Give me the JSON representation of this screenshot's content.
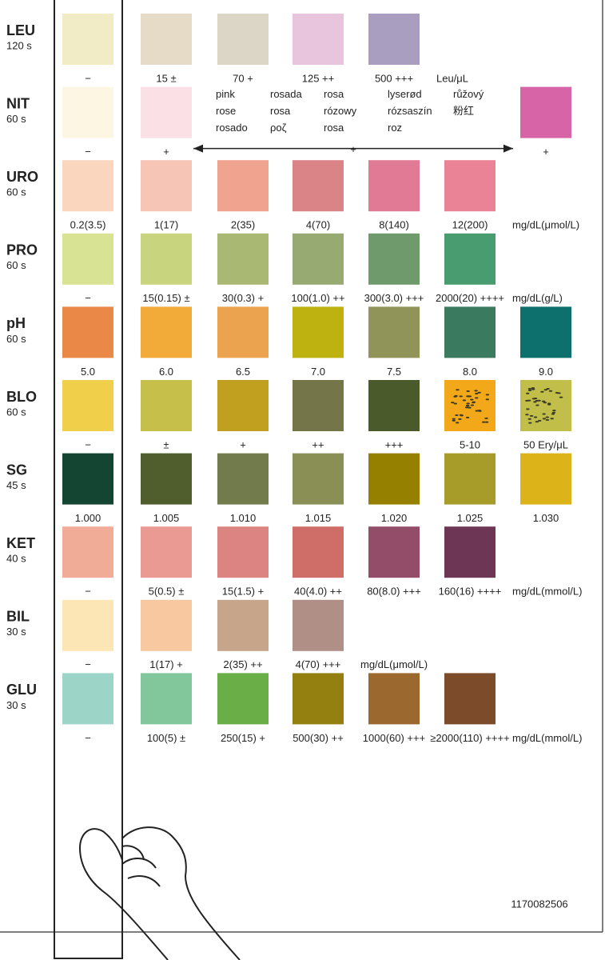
{
  "rows": [
    {
      "code": "LEU",
      "time": "120 s",
      "swatches": [
        {
          "color": "#f2ecc6",
          "label": "−"
        },
        {
          "color": "#e6dbc6",
          "label": "15 ±"
        },
        {
          "color": "#dcd6c6",
          "label": "70 +"
        },
        {
          "color": "#e8c5dc",
          "label": "125 ++"
        },
        {
          "color": "#a99ec0",
          "label": "500 +++"
        }
      ],
      "unit": "Leu/μL"
    },
    {
      "code": "NIT",
      "time": "60 s",
      "swatches": [
        {
          "color": "#fdf6e3",
          "label": "−"
        },
        {
          "color": "#fbe0e6",
          "label": "+"
        }
      ],
      "translations": [
        [
          "pink",
          "rose",
          "rosado"
        ],
        [
          "rosada",
          "rosa",
          "ροζ"
        ],
        [
          "rosa",
          "rózowy",
          "rosa"
        ],
        [
          "lyserød",
          "rózsaszín",
          "roz"
        ],
        [
          "růžový",
          "粉红"
        ]
      ],
      "arrow_label": "+",
      "end_swatch": {
        "color": "#d764a6",
        "label": "+"
      }
    },
    {
      "code": "URO",
      "time": "60 s",
      "swatches": [
        {
          "color": "#fbd6be",
          "label": "0.2(3.5)"
        },
        {
          "color": "#f7c5b5",
          "label": "1(17)"
        },
        {
          "color": "#f0a490",
          "label": "2(35)"
        },
        {
          "color": "#da8488",
          "label": "4(70)"
        },
        {
          "color": "#e07a95",
          "label": "8(140)"
        },
        {
          "color": "#ea8395",
          "label": "12(200)"
        }
      ],
      "unit": "mg/dL(μmol/L)"
    },
    {
      "code": "PRO",
      "time": "60 s",
      "swatches": [
        {
          "color": "#d8e494",
          "label": "−"
        },
        {
          "color": "#c8d47e",
          "label": "15(0.15) ±"
        },
        {
          "color": "#a9b872",
          "label": "30(0.3) +"
        },
        {
          "color": "#96aa72",
          "label": "100(1.0) ++"
        },
        {
          "color": "#6f9a6c",
          "label": "300(3.0) +++"
        },
        {
          "color": "#489c6f",
          "label": "2000(20) ++++"
        }
      ],
      "unit": "mg/dL(g/L)"
    },
    {
      "code": "pH",
      "time": "60 s",
      "swatches": [
        {
          "color": "#ea8848",
          "label": "5.0"
        },
        {
          "color": "#f2ab39",
          "label": "6.0"
        },
        {
          "color": "#eca34f",
          "label": "6.5"
        },
        {
          "color": "#bdb20f",
          "label": "7.0"
        },
        {
          "color": "#919458",
          "label": "7.5"
        },
        {
          "color": "#3a7b60",
          "label": "8.0"
        },
        {
          "color": "#0d706c",
          "label": "9.0"
        }
      ]
    },
    {
      "code": "BLO",
      "time": "60 s",
      "swatches": [
        {
          "color": "#f0d04a",
          "label": "−"
        },
        {
          "color": "#c6bf4a",
          "label": "±"
        },
        {
          "color": "#c0a01e",
          "label": "+"
        },
        {
          "color": "#747549",
          "label": "++"
        },
        {
          "color": "#4b5a2a",
          "label": "+++"
        },
        {
          "color": "#f3a81a",
          "label": "5-10",
          "speckled": true
        },
        {
          "color": "#c2be4a",
          "label": "50 Ery/μL",
          "speckled": true
        }
      ]
    },
    {
      "code": "SG",
      "time": "45 s",
      "swatches": [
        {
          "color": "#144432",
          "label": "1.000"
        },
        {
          "color": "#4f5e2c",
          "label": "1.005"
        },
        {
          "color": "#727b4b",
          "label": "1.010"
        },
        {
          "color": "#8a8f55",
          "label": "1.015"
        },
        {
          "color": "#958000",
          "label": "1.020"
        },
        {
          "color": "#a79b2a",
          "label": "1.025"
        },
        {
          "color": "#dcb41a",
          "label": "1.030"
        }
      ]
    },
    {
      "code": "KET",
      "time": "40 s",
      "swatches": [
        {
          "color": "#f1ac97",
          "label": "−"
        },
        {
          "color": "#ea9a92",
          "label": "5(0.5) ±"
        },
        {
          "color": "#dc8482",
          "label": "15(1.5) +"
        },
        {
          "color": "#cf6e68",
          "label": "40(4.0) ++"
        },
        {
          "color": "#934d68",
          "label": "80(8.0) +++"
        },
        {
          "color": "#6c3654",
          "label": "160(16) ++++"
        }
      ],
      "unit": "mg/dL(mmol/L)"
    },
    {
      "code": "BIL",
      "time": "30 s",
      "swatches": [
        {
          "color": "#fde6b6",
          "label": "−"
        },
        {
          "color": "#f8c8a0",
          "label": "1(17) +"
        },
        {
          "color": "#c7a58a",
          "label": "2(35) ++"
        },
        {
          "color": "#b08f86",
          "label": "4(70) +++"
        }
      ],
      "unit": "mg/dL(μmol/L)"
    },
    {
      "code": "GLU",
      "time": "30 s",
      "swatches": [
        {
          "color": "#9dd4c8",
          "label": "−"
        },
        {
          "color": "#82c79c",
          "label": "100(5) ±"
        },
        {
          "color": "#6aae48",
          "label": "250(15) +"
        },
        {
          "color": "#938010",
          "label": "500(30) ++"
        },
        {
          "color": "#9b6930",
          "label": "1000(60) +++"
        },
        {
          "color": "#7b4b2a",
          "label": "≥2000(110) ++++"
        }
      ],
      "unit": "mg/dL(mmol/L)"
    }
  ],
  "lot_number": "1170082506"
}
